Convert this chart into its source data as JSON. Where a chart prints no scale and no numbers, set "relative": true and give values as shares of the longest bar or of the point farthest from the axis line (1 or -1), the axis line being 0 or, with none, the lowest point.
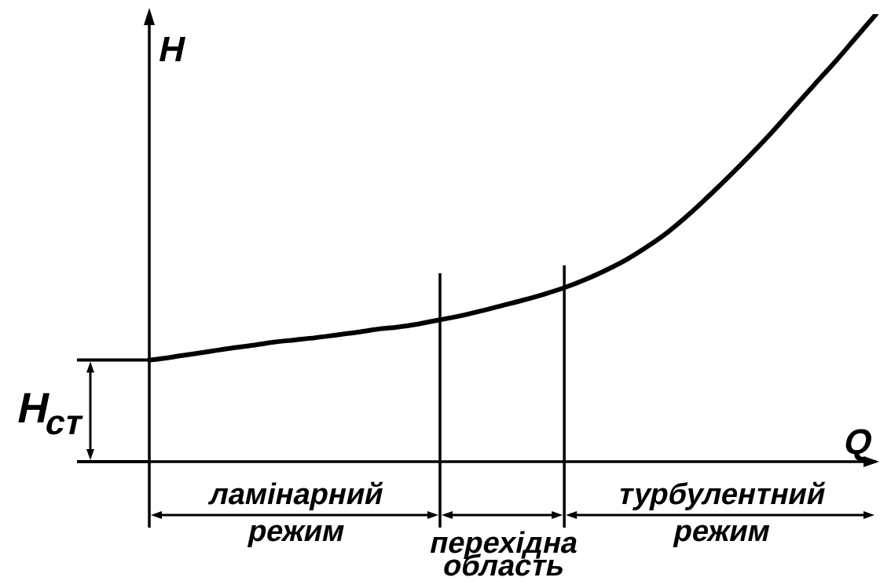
{
  "chart_data": {
    "type": "line",
    "xlabel": "Q",
    "ylabel": "H",
    "relative": true,
    "categories": [
      null,
      null,
      null,
      null,
      null,
      null,
      null,
      null,
      null,
      null,
      null,
      null,
      null,
      null,
      null,
      null,
      null,
      null,
      null,
      null,
      null,
      null,
      null,
      null,
      null,
      null,
      null,
      null,
      null,
      null,
      null,
      null,
      null,
      null,
      null,
      null
    ],
    "series": [
      {
        "color": "#000000",
        "values": [
          0.227,
          0.233,
          0.24,
          0.247,
          0.254,
          0.26,
          0.267,
          0.272,
          0.277,
          0.283,
          0.289,
          0.296,
          0.301,
          0.308,
          0.317,
          0.326,
          0.337,
          0.349,
          0.361,
          0.374,
          0.389,
          0.407,
          0.428,
          0.452,
          0.481,
          0.514,
          0.553,
          0.596,
          0.641,
          0.688,
          0.737,
          0.789,
          0.841,
          0.892,
          0.946,
          1
        ]
      }
    ],
    "ref_lines": [
      {
        "axis": "y",
        "value": 0.227,
        "label": "H$_{ст}$"
      }
    ],
    "annotations": [
      "ламінарний режим",
      "перехідна область",
      "турбулентний режим"
    ]
  }
}
